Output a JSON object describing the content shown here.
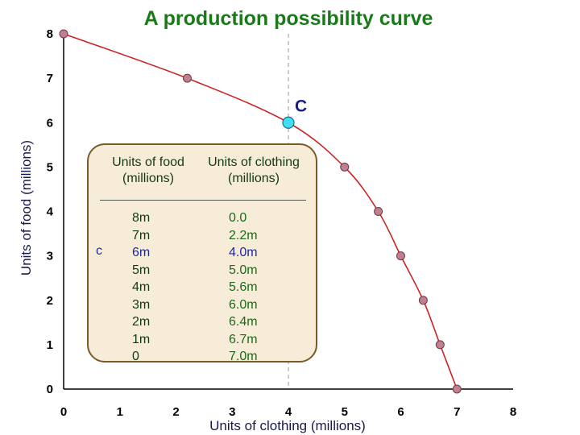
{
  "chart_data": {
    "type": "line",
    "title": "A production possibility curve",
    "xlabel": "Units of clothing (millions)",
    "ylabel": "Units of food (millions)",
    "xlim": [
      0,
      8
    ],
    "ylim": [
      0,
      8
    ],
    "xticks": [
      "0",
      "1",
      "2",
      "3",
      "4",
      "5",
      "6",
      "7",
      "8"
    ],
    "yticks": [
      "0",
      "1",
      "2",
      "3",
      "4",
      "5",
      "6",
      "7",
      "8"
    ],
    "grid": false,
    "series": [
      {
        "x": [
          0.0,
          2.2,
          4.0,
          5.0,
          5.6,
          6.0,
          6.4,
          6.7,
          7.0
        ],
        "y": [
          8,
          7,
          6,
          5,
          4,
          3,
          2,
          1,
          0
        ]
      }
    ],
    "highlight_point": {
      "label": "C",
      "x": 4.0,
      "y": 6,
      "color": "#40e0f0"
    },
    "colors": {
      "curve": "#cc2222",
      "marker": "#c08090",
      "title": "#1a7a1a"
    }
  },
  "table": {
    "header_food": "Units of food (millions)",
    "header_clothing": "Units of clothing (millions)",
    "row_label": "c",
    "highlight_index": 2,
    "food": [
      "8m",
      "7m",
      "6m",
      "5m",
      "4m",
      "3m",
      "2m",
      "1m",
      "0"
    ],
    "clothing": [
      "0.0",
      "2.2m",
      "4.0m",
      "5.0m",
      "5.6m",
      "6.0m",
      "6.4m",
      "6.7m",
      "7.0m"
    ]
  }
}
